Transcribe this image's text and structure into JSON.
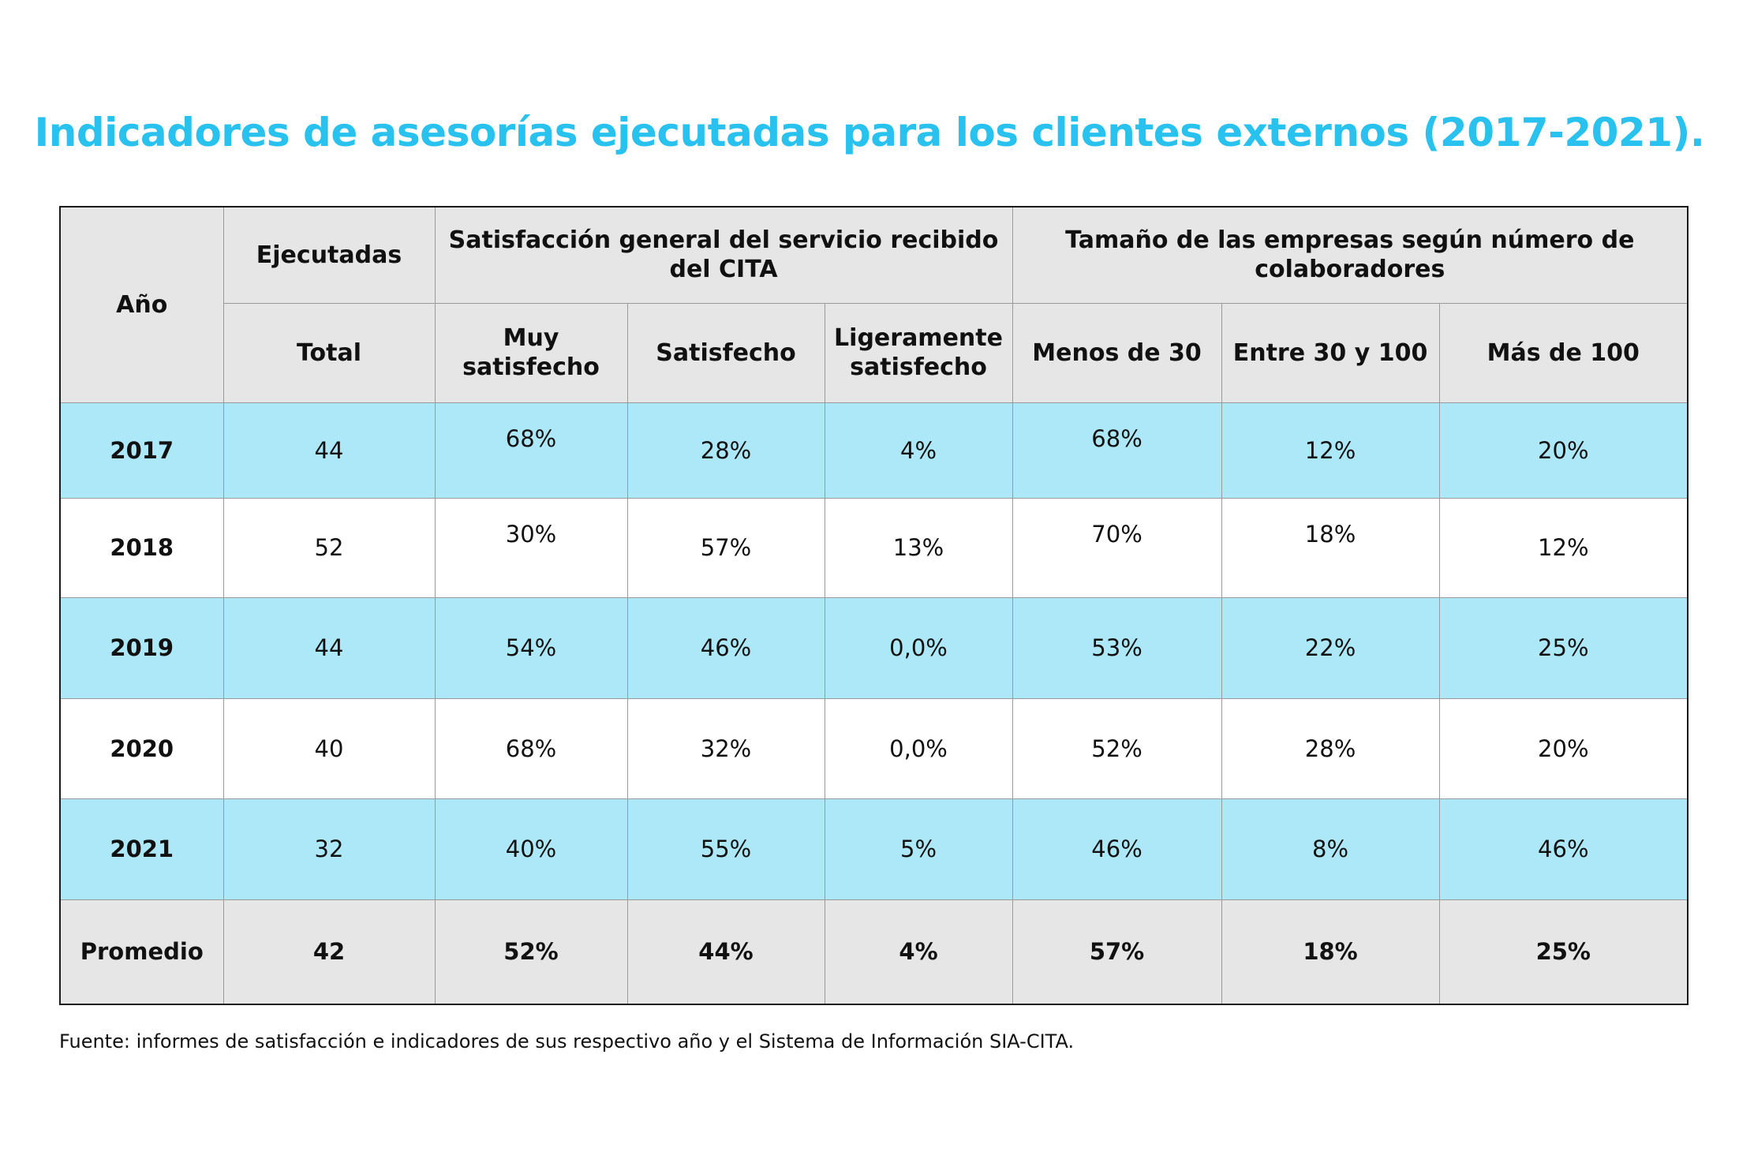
{
  "title": "Indicadores de asesorías ejecutadas para los clientes externos (2017-2021).",
  "colors": {
    "title": "#29c1ee",
    "header_bg": "#e6e6e6",
    "band_bg": "#ade8f8",
    "plain_bg": "#ffffff",
    "border": "#1a1a1a"
  },
  "table": {
    "headers": {
      "year": "Año",
      "executed_group": "Ejecutadas",
      "satisfaction_group": "Satisfacción general del servicio recibido del CITA",
      "size_group": "Tamaño de las empresas según número de colaboradores",
      "total": "Total",
      "very_satisfied": "Muy satisfecho",
      "satisfied": "Satisfecho",
      "slightly_satisfied": "Ligeramente satisfecho",
      "under_30": "Menos de 30",
      "between_30_100": "Entre 30 y 100",
      "over_100": "Más de 100"
    },
    "rows": [
      {
        "year": "2017",
        "total": "44",
        "very_satisfied": "68%",
        "satisfied": "28%",
        "slightly_satisfied": "4%",
        "under_30": "68%",
        "between_30_100": "12%",
        "over_100": "20%"
      },
      {
        "year": "2018",
        "total": "52",
        "very_satisfied": "30%",
        "satisfied": "57%",
        "slightly_satisfied": "13%",
        "under_30": "70%",
        "between_30_100": "18%",
        "over_100": "12%"
      },
      {
        "year": "2019",
        "total": "44",
        "very_satisfied": "54%",
        "satisfied": "46%",
        "slightly_satisfied": "0,0%",
        "under_30": "53%",
        "between_30_100": "22%",
        "over_100": "25%"
      },
      {
        "year": "2020",
        "total": "40",
        "very_satisfied": "68%",
        "satisfied": "32%",
        "slightly_satisfied": "0,0%",
        "under_30": "52%",
        "between_30_100": "28%",
        "over_100": "20%"
      },
      {
        "year": "2021",
        "total": "32",
        "very_satisfied": "40%",
        "satisfied": "55%",
        "slightly_satisfied": "5%",
        "under_30": "46%",
        "between_30_100": "8%",
        "over_100": "46%"
      }
    ],
    "average": {
      "label": "Promedio",
      "total": "42",
      "very_satisfied": "52%",
      "satisfied": "44%",
      "slightly_satisfied": "4%",
      "under_30": "57%",
      "between_30_100": "18%",
      "over_100": "25%"
    }
  },
  "source": "Fuente: informes de satisfacción e indicadores de sus respectivo año y el Sistema de Información SIA-CITA."
}
